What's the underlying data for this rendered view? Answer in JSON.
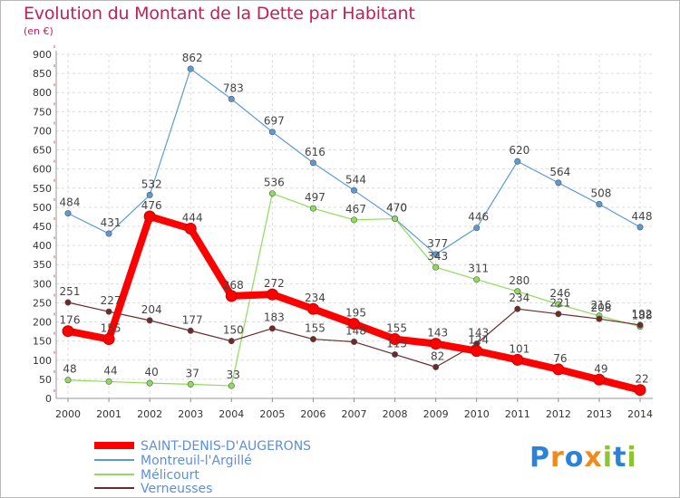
{
  "title": "Evolution du Montant de la Dette par Habitant",
  "unit": "(en €)",
  "logo": "Proxiti",
  "chart_data": {
    "type": "line",
    "x": [
      2000,
      2001,
      2002,
      2003,
      2004,
      2005,
      2006,
      2007,
      2008,
      2009,
      2010,
      2011,
      2012,
      2013,
      2014
    ],
    "ylim": [
      0,
      900
    ],
    "yticks": [
      0,
      50,
      100,
      150,
      200,
      250,
      300,
      350,
      400,
      450,
      500,
      550,
      600,
      650,
      700,
      750,
      800,
      850,
      900
    ],
    "grid": true,
    "legend_position": "bottom-left",
    "series": [
      {
        "name": "SAINT-DENIS-D'AUGERONS",
        "color": "#ff0000",
        "values": [
          176,
          155,
          476,
          444,
          268,
          272,
          234,
          195,
          155,
          143,
          124,
          101,
          76,
          49,
          22
        ],
        "labels": [
          "176",
          "155",
          "476",
          "444",
          "268",
          "272",
          "234",
          "195",
          "155",
          "143",
          "124",
          "101",
          "76",
          "49",
          "22"
        ]
      },
      {
        "name": "Montreuil-l'Argillé",
        "color": "#5b9bd5",
        "values": [
          484,
          431,
          532,
          862,
          783,
          697,
          616,
          544,
          470,
          377,
          446,
          620,
          564,
          508,
          448
        ],
        "labels": [
          "484",
          "431",
          "532",
          "862",
          "783",
          "697",
          "616",
          "544",
          "470",
          "377",
          "446",
          "620",
          "564",
          "508",
          "448"
        ]
      },
      {
        "name": "Mélicourt",
        "color": "#8fdc5a",
        "values": [
          48,
          44,
          40,
          37,
          33,
          536,
          497,
          467,
          470,
          343,
          311,
          280,
          246,
          216,
          188
        ],
        "labels": [
          "48",
          "44",
          "40",
          "37",
          "33",
          "536",
          "497",
          "467",
          "470",
          "343",
          "311",
          "280",
          "246",
          "216",
          "188"
        ]
      },
      {
        "name": "Verneusses",
        "color": "#6e2a2a",
        "values": [
          251,
          227,
          204,
          177,
          150,
          183,
          155,
          148,
          115,
          82,
          143,
          234,
          221,
          208,
          192
        ],
        "labels": [
          "251",
          "227",
          "204",
          "177",
          "150",
          "183",
          "155",
          "148",
          "115",
          "82",
          "143",
          "234",
          "221",
          "208",
          "192"
        ]
      }
    ]
  }
}
